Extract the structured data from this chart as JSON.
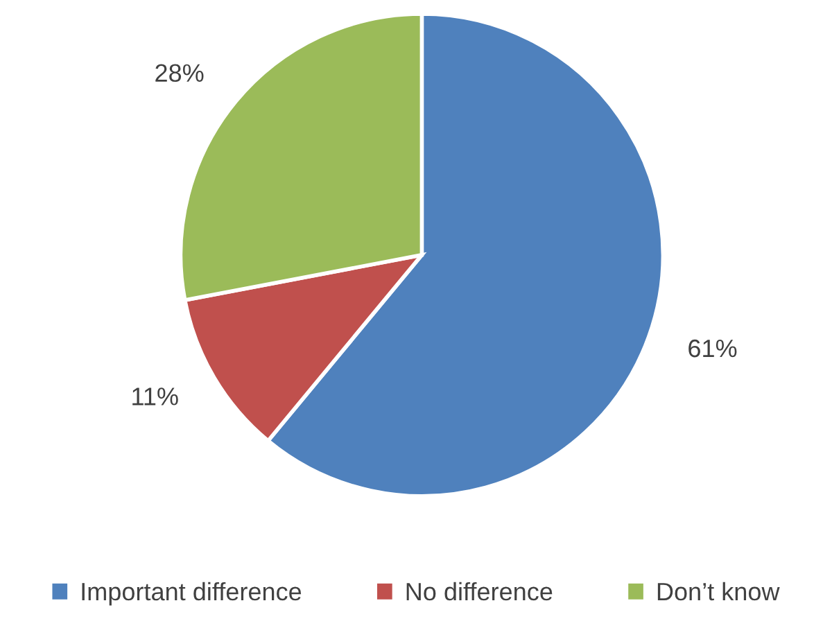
{
  "chart_data": {
    "type": "pie",
    "categories": [
      "Important difference",
      "No difference",
      "Don’t know"
    ],
    "values": [
      61,
      11,
      28
    ],
    "colors": [
      "#4f81bd",
      "#c0504d",
      "#9bbb59"
    ],
    "value_labels": [
      "61%",
      "11%",
      "28%"
    ],
    "legend": "bottom"
  }
}
